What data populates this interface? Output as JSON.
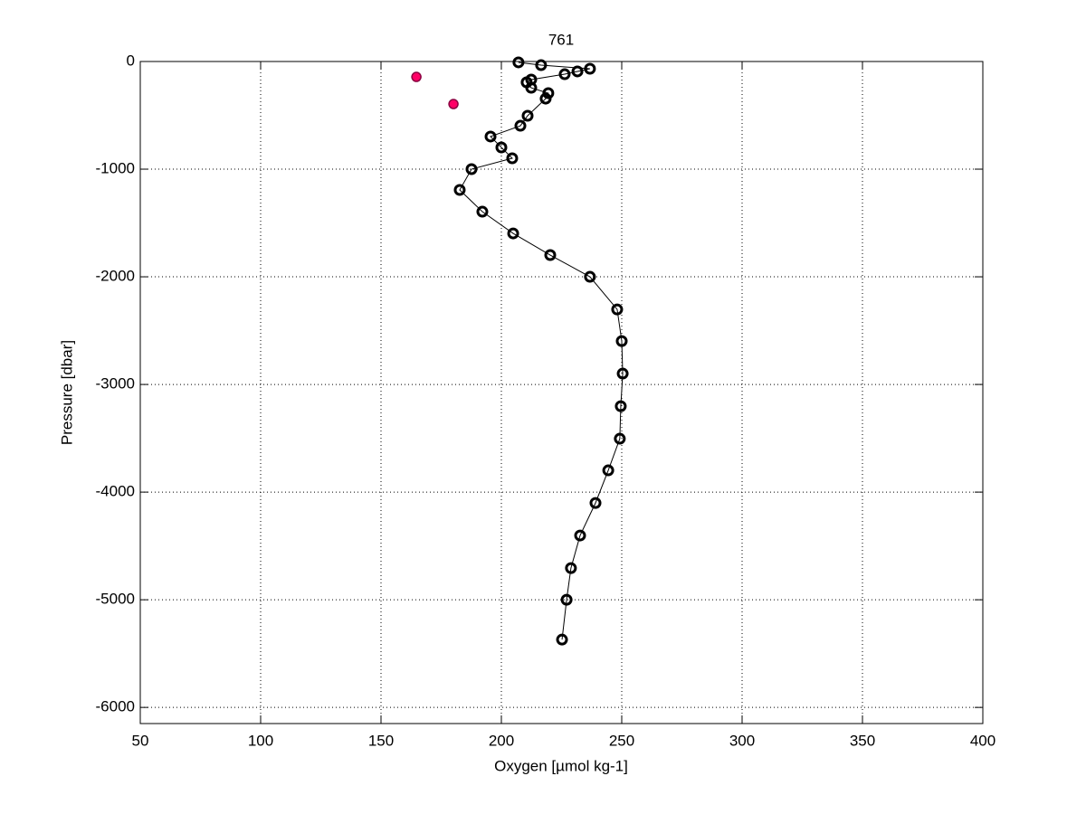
{
  "chart_data": {
    "type": "line",
    "title": "761",
    "x_label": "Oxygen [µmol kg-1]",
    "y_label": "Pressure [dbar]",
    "xlim": [
      50,
      400
    ],
    "ylim": [
      -6150,
      0
    ],
    "xticks": [
      50,
      100,
      150,
      200,
      250,
      300,
      350,
      400
    ],
    "yticks": [
      0,
      -1000,
      -2000,
      -3000,
      -4000,
      -5000,
      -6000
    ],
    "grid": true,
    "series": [
      {
        "color": "#000000",
        "marker": "circle",
        "line": true,
        "x": [
          207.1,
          216.5,
          236.8,
          231.6,
          226.3,
          212.4,
          210.5,
          212.4,
          219.5,
          218.4,
          210.9,
          207.9,
          195.5,
          200,
          204.5,
          187.6,
          182.7,
          192.1,
          204.9,
          220.3,
          236.8,
          248.1,
          250,
          250.4,
          249.6,
          249.2,
          244.4,
          239.1,
          232.7,
          228.9,
          227.1,
          225.2
        ],
        "values": [
          -8,
          -34,
          -67,
          -92,
          -118,
          -168,
          -193,
          -244,
          -294,
          -345,
          -504,
          -597,
          -697,
          -798,
          -899,
          -1000,
          -1193,
          -1395,
          -1597,
          -1798,
          -2000,
          -2303,
          -2597,
          -2899,
          -3202,
          -3504,
          -3798,
          -4101,
          -4403,
          -4706,
          -5000,
          -5370
        ]
      },
      {
        "color": "#ff0066",
        "marker": "filled-circle",
        "line": false,
        "x": [
          164.7,
          180.1
        ],
        "values": [
          -143,
          -395
        ]
      }
    ]
  }
}
